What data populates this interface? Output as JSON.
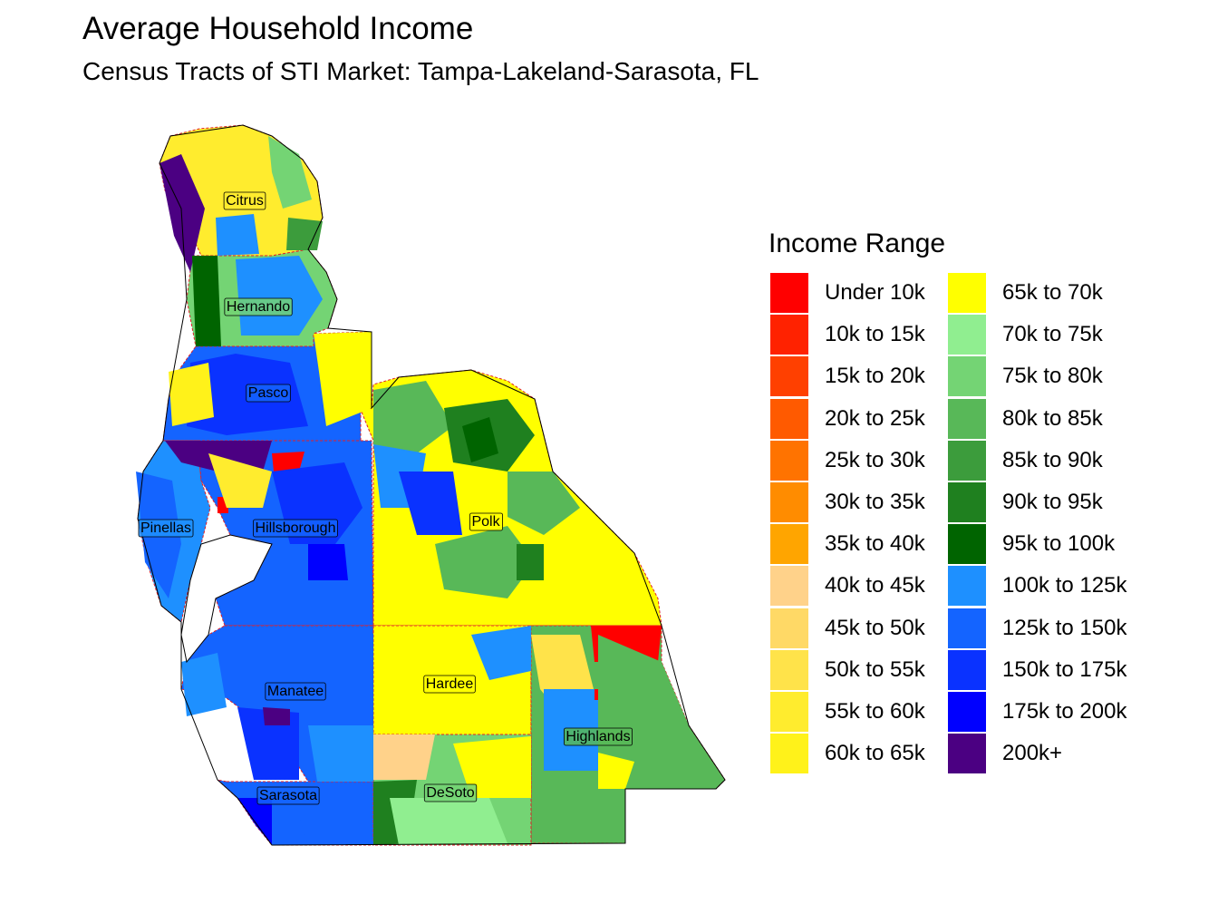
{
  "title": "Average Household Income",
  "subtitle": "Census Tracts of STI Market: Tampa-Lakeland-Sarasota, FL",
  "legend": {
    "title": "Income Range",
    "items": [
      {
        "label": "Under 10k",
        "color": "#ff0000"
      },
      {
        "label": "10k to 15k",
        "color": "#ff2200"
      },
      {
        "label": "15k to 20k",
        "color": "#ff4000"
      },
      {
        "label": "20k to 25k",
        "color": "#ff5a00"
      },
      {
        "label": "25k to 30k",
        "color": "#ff7300"
      },
      {
        "label": "30k to 35k",
        "color": "#ff8c00"
      },
      {
        "label": "35k to 40k",
        "color": "#ffa500"
      },
      {
        "label": "40k to 45k",
        "color": "#ffd28a"
      },
      {
        "label": "45k to 50k",
        "color": "#ffd966"
      },
      {
        "label": "50k to 55k",
        "color": "#ffe34a"
      },
      {
        "label": "55k to 60k",
        "color": "#ffec2e"
      },
      {
        "label": "60k to 65k",
        "color": "#fff21a"
      },
      {
        "label": "65k to 70k",
        "color": "#ffff00"
      },
      {
        "label": "70k to 75k",
        "color": "#90ee90"
      },
      {
        "label": "75k to 80k",
        "color": "#74d474"
      },
      {
        "label": "80k to 85k",
        "color": "#58b858"
      },
      {
        "label": "85k to 90k",
        "color": "#3c9c3c"
      },
      {
        "label": "90k to 95k",
        "color": "#1f801f"
      },
      {
        "label": "95k to 100k",
        "color": "#006400"
      },
      {
        "label": "100k to 125k",
        "color": "#1e90ff"
      },
      {
        "label": "125k to 150k",
        "color": "#1464ff"
      },
      {
        "label": "150k to 175k",
        "color": "#0a32ff"
      },
      {
        "label": "175k to 200k",
        "color": "#0000ff"
      },
      {
        "label": "200k+",
        "color": "#4b0082"
      }
    ]
  },
  "counties": [
    {
      "name": "Citrus",
      "income_range": "55k to 60k",
      "color": "#ffec2e"
    },
    {
      "name": "Hernando",
      "income_range": "75k to 80k",
      "color": "#74d474"
    },
    {
      "name": "Pasco",
      "income_range": "125k to 150k",
      "color": "#1464ff"
    },
    {
      "name": "Pinellas",
      "income_range": "100k to 125k",
      "color": "#1e90ff"
    },
    {
      "name": "Hillsborough",
      "income_range": "125k to 150k",
      "color": "#1464ff"
    },
    {
      "name": "Polk",
      "income_range": "65k to 70k",
      "color": "#ffff00"
    },
    {
      "name": "Manatee",
      "income_range": "125k to 150k",
      "color": "#1464ff"
    },
    {
      "name": "Hardee",
      "income_range": "65k to 70k",
      "color": "#ffff00"
    },
    {
      "name": "Highlands",
      "income_range": "80k to 85k",
      "color": "#58b858"
    },
    {
      "name": "Sarasota",
      "income_range": "125k to 150k",
      "color": "#1464ff"
    },
    {
      "name": "DeSoto",
      "income_range": "75k to 80k",
      "color": "#74d474"
    }
  ],
  "colors": {
    "county_border": "#e0202a",
    "outline": "#000000",
    "label_box": "#ffffff"
  }
}
